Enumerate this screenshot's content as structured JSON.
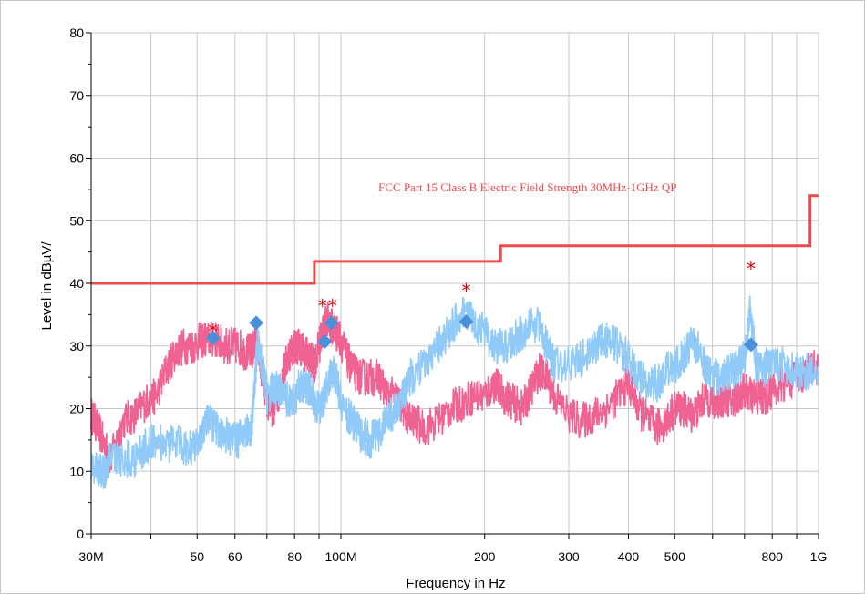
{
  "chart_data": {
    "type": "line",
    "xlabel": "Frequency in Hz",
    "ylabel": "Level in dBµV/",
    "x_scale": "log",
    "xlim_hz": [
      30000000,
      1000000000
    ],
    "ylim": [
      0,
      80
    ],
    "y_ticks": [
      0,
      10,
      20,
      30,
      40,
      50,
      60,
      70,
      80
    ],
    "x_ticks": [
      {
        "value": 30000000,
        "label": "30M"
      },
      {
        "value": 50000000,
        "label": "50"
      },
      {
        "value": 60000000,
        "label": "60"
      },
      {
        "value": 80000000,
        "label": "80"
      },
      {
        "value": 100000000,
        "label": "100M"
      },
      {
        "value": 200000000,
        "label": "200"
      },
      {
        "value": 300000000,
        "label": "300"
      },
      {
        "value": 400000000,
        "label": "400"
      },
      {
        "value": 500000000,
        "label": "500"
      },
      {
        "value": 800000000,
        "label": "800"
      },
      {
        "value": 1000000000,
        "label": "1G"
      }
    ],
    "x_minor_ticks": [
      40000000,
      70000000,
      90000000,
      600000000,
      700000000,
      900000000
    ],
    "grid": true,
    "limit_line": {
      "label": "FCC Part 15 Class B Electric Field Strength 30MHz-1GHz QP",
      "color": "#f0484b",
      "x": [
        30000000,
        88000000,
        88000000,
        216000000,
        216000000,
        960000000,
        960000000,
        1000000000
      ],
      "y": [
        40,
        40,
        43.5,
        43.5,
        46,
        46,
        54,
        54
      ]
    },
    "series": [
      {
        "color": "#f06292",
        "x": [
          30,
          31,
          32,
          33,
          35,
          37,
          39,
          41,
          43,
          45,
          47,
          49,
          51,
          53,
          55,
          57,
          59,
          61,
          63,
          65,
          66,
          67,
          68,
          70,
          72,
          74,
          76,
          78,
          80,
          82,
          84,
          86,
          88,
          90,
          92,
          94,
          96,
          98,
          100,
          103,
          106,
          110,
          115,
          120,
          125,
          130,
          135,
          140,
          150,
          160,
          170,
          180,
          190,
          200,
          210,
          220,
          230,
          240,
          250,
          260,
          270,
          280,
          300,
          320,
          340,
          360,
          380,
          400,
          420,
          440,
          460,
          480,
          500,
          520,
          540,
          560,
          580,
          600,
          620,
          640,
          660,
          680,
          700,
          720,
          740,
          760,
          780,
          800,
          850,
          900,
          950,
          1000
        ],
        "y": [
          19,
          17,
          14,
          12,
          18,
          19,
          21,
          22,
          26,
          29,
          30,
          30,
          31,
          31,
          31,
          30,
          30,
          30,
          29,
          29,
          30,
          30,
          27,
          21,
          20,
          22,
          26,
          29,
          30,
          30,
          29,
          28,
          27,
          30,
          33,
          34,
          33,
          32,
          31,
          28,
          26,
          25,
          25,
          25,
          22,
          22,
          20,
          18,
          17,
          18,
          20,
          21,
          22,
          22,
          24,
          22,
          21,
          20,
          23,
          26,
          25,
          22,
          19,
          18,
          19,
          20,
          22,
          24,
          20,
          18,
          17,
          18,
          20,
          20,
          19,
          20,
          22,
          21,
          21,
          22,
          21,
          22,
          23,
          22,
          22,
          22,
          22,
          23,
          24,
          25,
          26,
          27
        ]
      },
      {
        "color": "#90caf9",
        "x": [
          30,
          31,
          32,
          33,
          35,
          37,
          39,
          41,
          43,
          45,
          47,
          49,
          51,
          53,
          55,
          57,
          59,
          61,
          63,
          65,
          66,
          67,
          68,
          70,
          72,
          74,
          76,
          78,
          80,
          82,
          84,
          86,
          88,
          90,
          92,
          94,
          96,
          98,
          100,
          103,
          106,
          110,
          115,
          120,
          125,
          130,
          135,
          140,
          150,
          160,
          170,
          180,
          190,
          200,
          210,
          220,
          230,
          240,
          250,
          260,
          270,
          280,
          300,
          320,
          340,
          360,
          380,
          400,
          420,
          440,
          460,
          480,
          500,
          520,
          540,
          560,
          580,
          600,
          620,
          640,
          660,
          680,
          700,
          720,
          740,
          760,
          780,
          800,
          850,
          900,
          950,
          1000
        ],
        "y": [
          11,
          10,
          10,
          12,
          12,
          12,
          14,
          15,
          14,
          15,
          14,
          14,
          16,
          18,
          17,
          16,
          15,
          15,
          16,
          17,
          24,
          31,
          28,
          22,
          23,
          23,
          22,
          21,
          21,
          24,
          24,
          23,
          21,
          20,
          21,
          24,
          26,
          25,
          21,
          19,
          18,
          16,
          15,
          16,
          18,
          20,
          22,
          25,
          27,
          30,
          33,
          35,
          34,
          32,
          30,
          30,
          31,
          32,
          34,
          33,
          30,
          27,
          27,
          28,
          30,
          31,
          30,
          28,
          25,
          24,
          24,
          26,
          27,
          28,
          30,
          30,
          27,
          25,
          25,
          26,
          26,
          27,
          28,
          36,
          27,
          26,
          27,
          27,
          27,
          26,
          26,
          26
        ]
      }
    ],
    "peak_markers": [
      {
        "x": 54,
        "y": 32.5
      },
      {
        "x": 91.5,
        "y": 36.5
      },
      {
        "x": 96,
        "y": 36.5
      },
      {
        "x": 183,
        "y": 39
      },
      {
        "x": 722,
        "y": 42.5
      }
    ],
    "qp_markers": [
      {
        "x": 54,
        "y": 31.3
      },
      {
        "x": 66.5,
        "y": 33.7
      },
      {
        "x": 92.5,
        "y": 30.7
      },
      {
        "x": 95.5,
        "y": 33.7
      },
      {
        "x": 183,
        "y": 33.9
      },
      {
        "x": 722,
        "y": 30.2
      }
    ]
  }
}
